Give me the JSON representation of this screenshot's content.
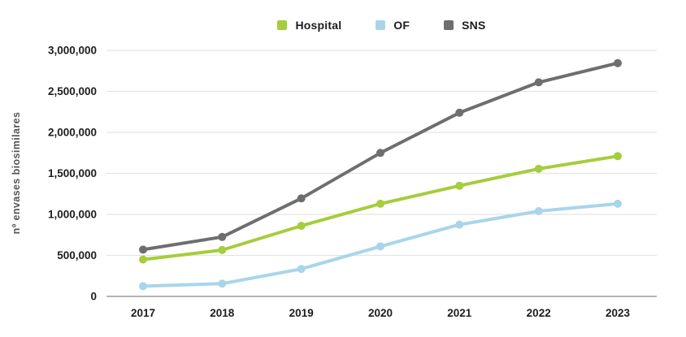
{
  "page": {
    "background": "#ffffff"
  },
  "chart_data": {
    "type": "line",
    "title": "",
    "xlabel": "",
    "ylabel": "nº envases biosimilares",
    "categories": [
      "2017",
      "2018",
      "2019",
      "2020",
      "2021",
      "2022",
      "2023"
    ],
    "series": [
      {
        "name": "Hospital",
        "color": "#a5cd3c",
        "values": [
          450000,
          565000,
          860000,
          1130000,
          1350000,
          1555000,
          1710000
        ]
      },
      {
        "name": "OF",
        "color": "#a9d5ea",
        "values": [
          125000,
          155000,
          335000,
          610000,
          875000,
          1040000,
          1130000
        ]
      },
      {
        "name": "SNS",
        "color": "#6d6e70",
        "values": [
          570000,
          725000,
          1195000,
          1750000,
          2240000,
          2610000,
          2845000
        ]
      }
    ],
    "ylim": [
      0,
      3000000
    ],
    "ytick_step": 500000,
    "yticks": [
      "0",
      "500,000",
      "1,000,000",
      "1,500,000",
      "2,000,000",
      "2,500,000",
      "3,000,000"
    ],
    "grid": "horizontal",
    "legend_position": "top",
    "marker": "circle"
  },
  "colors": {
    "gridline": "#e4e4e4",
    "axis_line": "#9c9c9c",
    "tick_text": "#1d1d1f",
    "axis_title_text": "#565656"
  }
}
